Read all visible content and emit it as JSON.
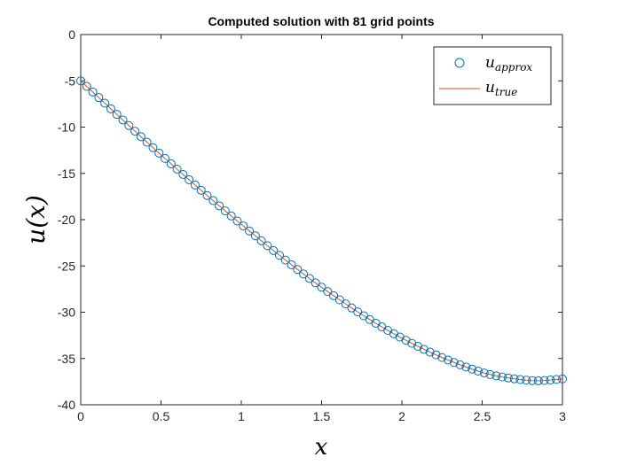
{
  "chart_data": {
    "type": "line",
    "title": "Computed solution with 81 grid points",
    "xlabel": "x",
    "ylabel": "u(x)",
    "xlim": [
      0,
      3
    ],
    "ylim": [
      -40,
      0
    ],
    "xticks": [
      0,
      0.5,
      1,
      1.5,
      2,
      2.5,
      3
    ],
    "xtick_labels": [
      "0",
      "0.5",
      "1",
      "1.5",
      "2",
      "2.5",
      "3"
    ],
    "yticks": [
      0,
      -5,
      -10,
      -15,
      -20,
      -25,
      -30,
      -35,
      -40
    ],
    "ytick_labels": [
      "0",
      "-5",
      "-10",
      "-15",
      "-20",
      "-25",
      "-30",
      "-35",
      "-40"
    ],
    "grid": false,
    "legend_location": "top-right",
    "n_points": 81,
    "x_step": 0.0375,
    "curve_nodes": [
      {
        "x": 0.0,
        "y": -5.0
      },
      {
        "x": 0.5,
        "y": -13.0
      },
      {
        "x": 1.0,
        "y": -20.5
      },
      {
        "x": 1.5,
        "y": -27.3
      },
      {
        "x": 2.0,
        "y": -32.8
      },
      {
        "x": 2.5,
        "y": -36.5
      },
      {
        "x": 2.75,
        "y": -37.3
      },
      {
        "x": 2.85,
        "y": -37.4
      },
      {
        "x": 3.0,
        "y": -37.2
      }
    ],
    "series": [
      {
        "name": "u_approx",
        "label_main": "u",
        "label_sub": "approx",
        "style": "markers",
        "marker": "circle",
        "color": "#0072BD"
      },
      {
        "name": "u_true",
        "label_main": "u",
        "label_sub": "true",
        "style": "line",
        "color": "#D95319"
      }
    ]
  }
}
